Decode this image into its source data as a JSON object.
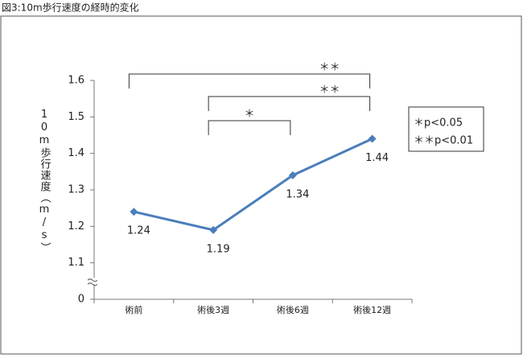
{
  "chart_data": {
    "type": "line",
    "title": "図3:10m歩行速度の経時的変化",
    "y_label": "10m歩行速度（m/s）",
    "categories": [
      "術前",
      "術後3週",
      "術後6週",
      "術後12週"
    ],
    "values": [
      1.24,
      1.19,
      1.34,
      1.44
    ],
    "color": "#4a7ebb",
    "ylim": [
      0,
      1.6
    ],
    "yticks": [
      0,
      1.1,
      1.2,
      1.3,
      1.4,
      1.5,
      1.6
    ],
    "axis_break": true,
    "annotations": [
      "＊＊",
      "＊＊",
      "＊"
    ],
    "legend": [
      "＊p<0.05",
      "＊＊p<0.01"
    ]
  }
}
